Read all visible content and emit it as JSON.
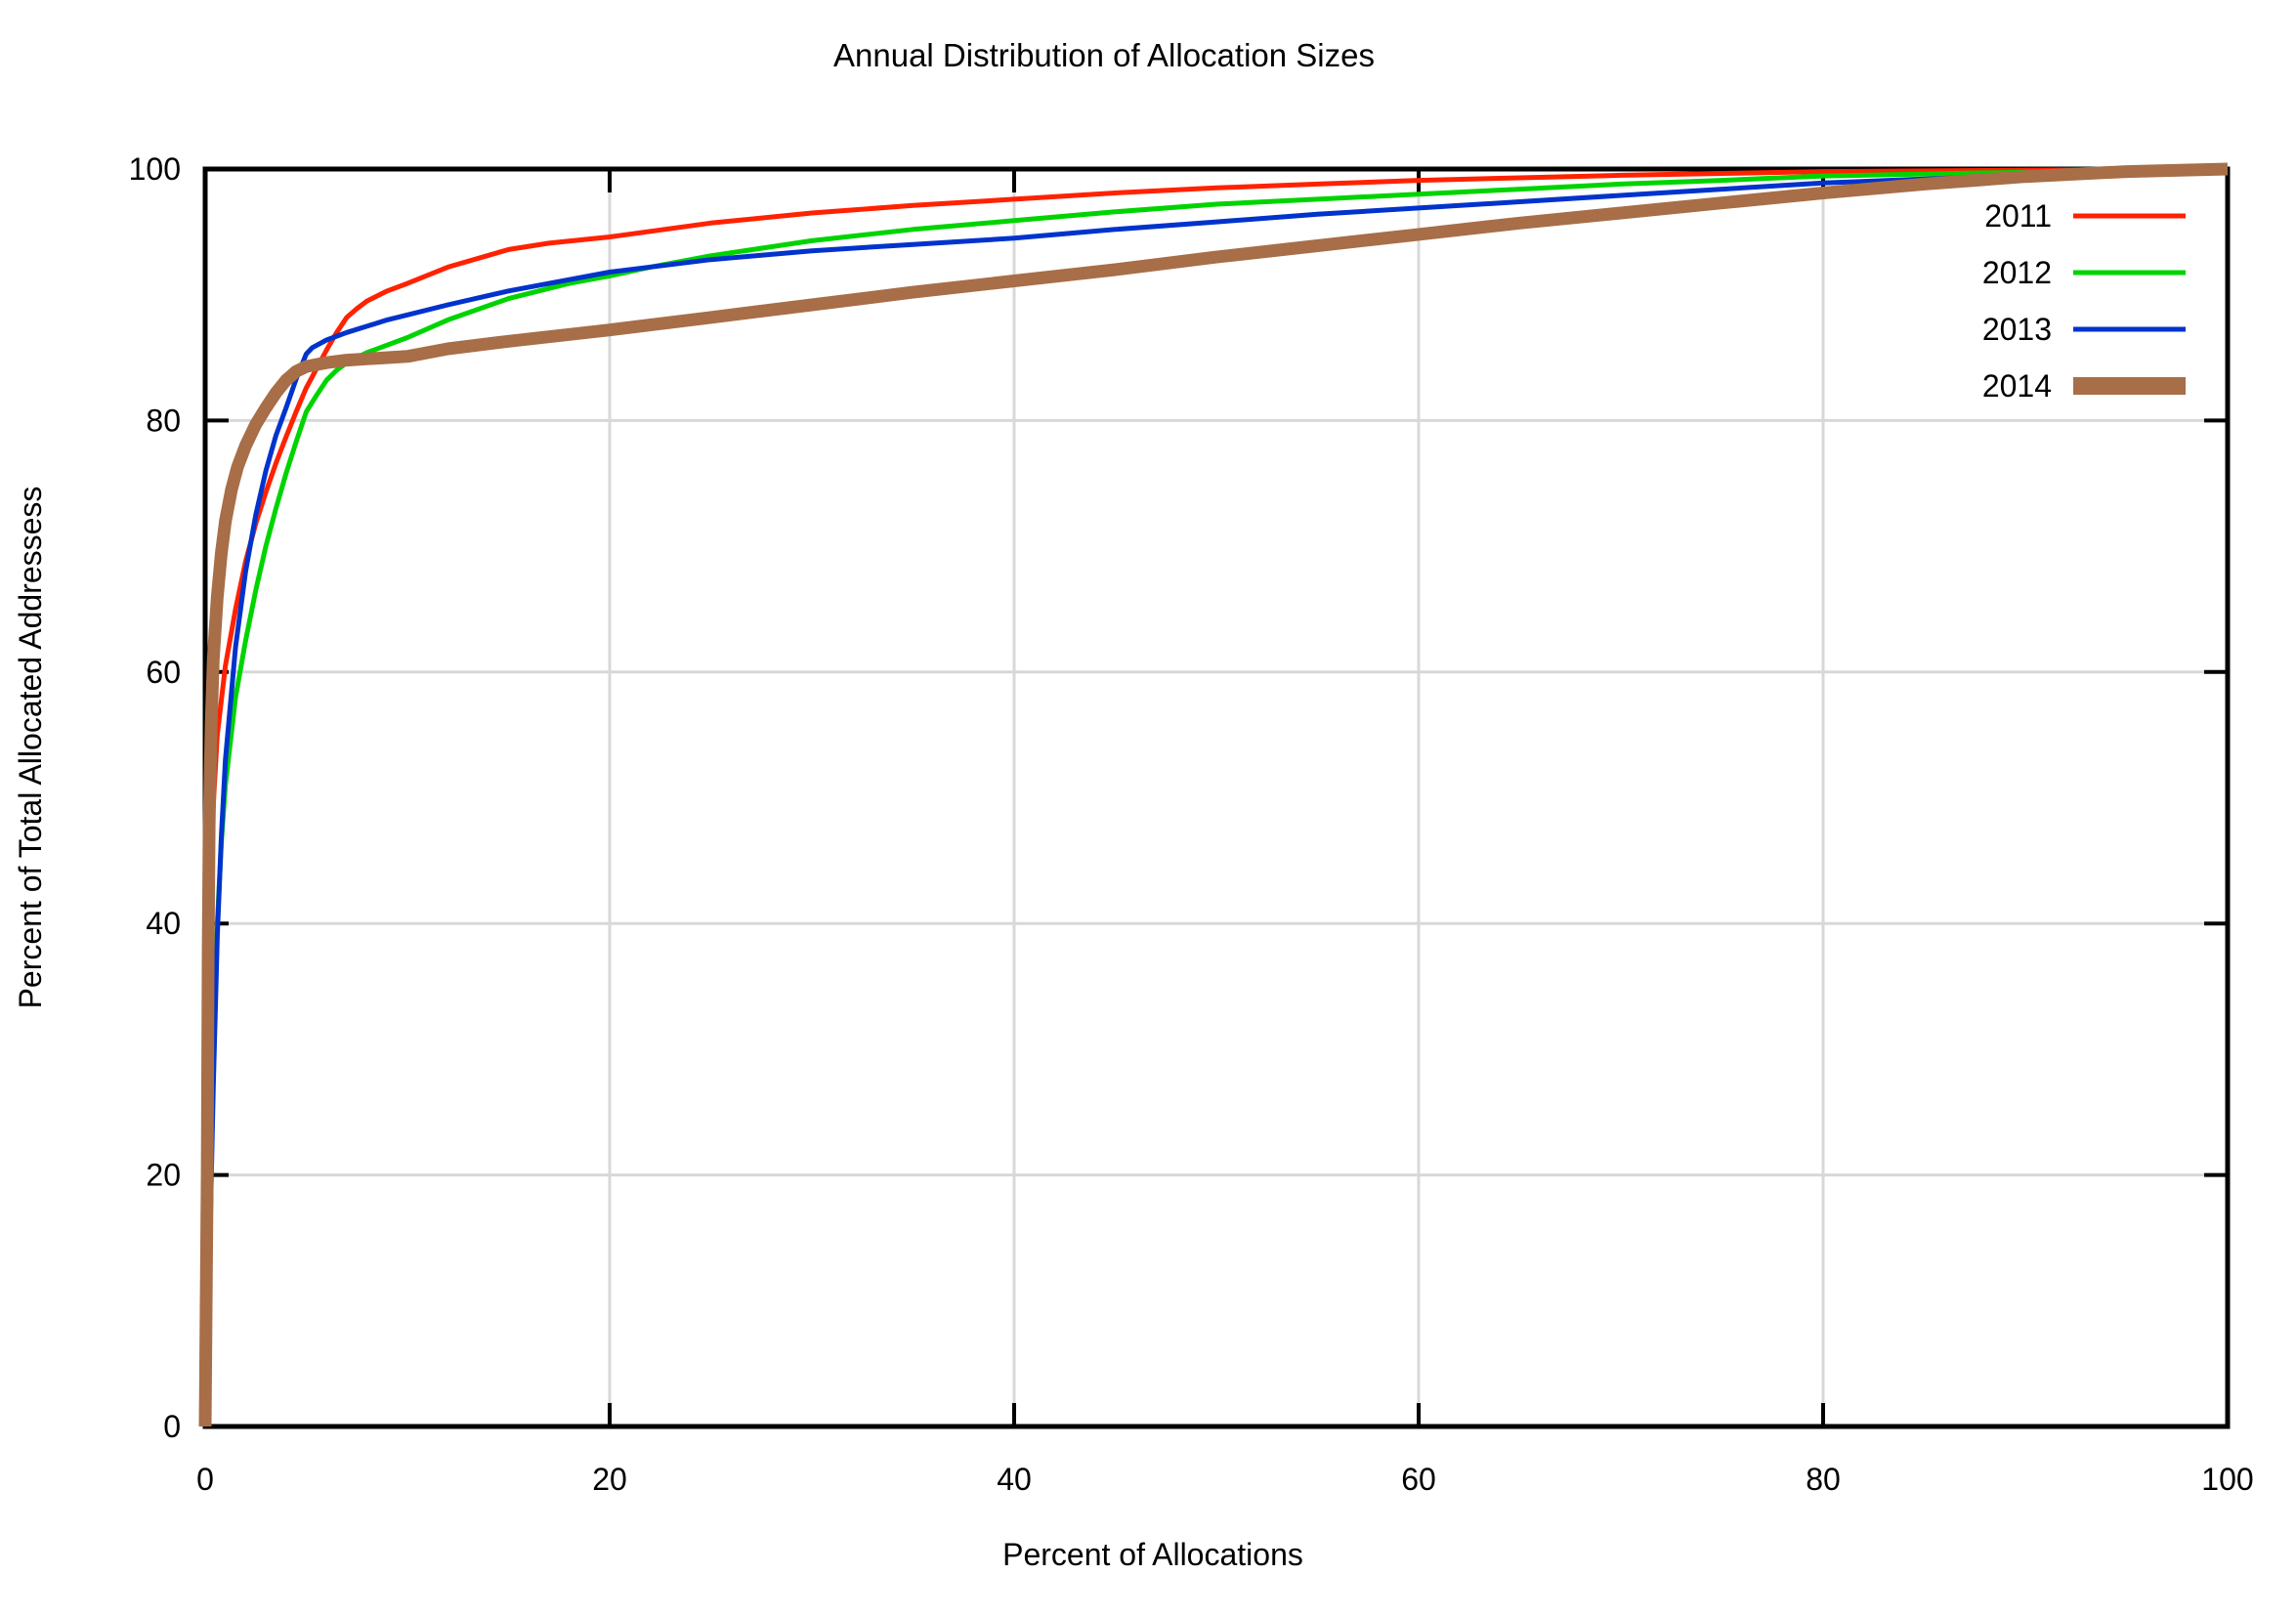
{
  "title": "Annual Distribution of Allocation Sizes",
  "chart_data": {
    "type": "line",
    "title": "Annual Distribution of Allocation Sizes",
    "xlabel": "Percent of Allocations",
    "ylabel": "Percent of Total Allocated Addressess",
    "xlim": [
      0,
      100
    ],
    "ylim": [
      0,
      100
    ],
    "xticks": [
      "0",
      "20",
      "40",
      "60",
      "80",
      "100"
    ],
    "yticks": [
      "0",
      "20",
      "40",
      "60",
      "80",
      "100"
    ],
    "grid": true,
    "grid_color": "#d8d8d8",
    "border_color": "#000000",
    "legend_position": "top-right-inside",
    "series": [
      {
        "name": "2011",
        "color": "#ff2200",
        "width": 5,
        "points": [
          [
            0,
            0
          ],
          [
            0.1,
            20
          ],
          [
            0.2,
            38
          ],
          [
            0.35,
            48
          ],
          [
            0.6,
            55
          ],
          [
            1,
            60.5
          ],
          [
            1.5,
            65
          ],
          [
            2,
            68.8
          ],
          [
            2.5,
            71.8
          ],
          [
            3,
            74.3
          ],
          [
            3.5,
            76.6
          ],
          [
            4,
            78.7
          ],
          [
            4.5,
            80.7
          ],
          [
            5,
            82.6
          ],
          [
            5.5,
            84.1
          ],
          [
            6,
            85.6
          ],
          [
            6.5,
            87
          ],
          [
            7,
            88.2
          ],
          [
            7.5,
            88.9
          ],
          [
            8,
            89.5
          ],
          [
            9,
            90.3
          ],
          [
            10,
            90.9
          ],
          [
            12,
            92.2
          ],
          [
            15,
            93.6
          ],
          [
            17,
            94.1
          ],
          [
            20,
            94.6
          ],
          [
            25,
            95.7
          ],
          [
            30,
            96.5
          ],
          [
            35,
            97.1
          ],
          [
            40,
            97.6
          ],
          [
            45,
            98.1
          ],
          [
            50,
            98.5
          ],
          [
            55,
            98.8
          ],
          [
            60,
            99.1
          ],
          [
            65,
            99.3
          ],
          [
            70,
            99.5
          ],
          [
            75,
            99.65
          ],
          [
            80,
            99.8
          ],
          [
            85,
            99.85
          ],
          [
            90,
            99.9
          ],
          [
            95,
            99.95
          ],
          [
            100,
            100
          ]
        ]
      },
      {
        "name": "2012",
        "color": "#00d400",
        "width": 5,
        "points": [
          [
            0,
            0
          ],
          [
            0.2,
            15
          ],
          [
            0.4,
            30
          ],
          [
            0.6,
            40
          ],
          [
            0.8,
            46.5
          ],
          [
            1,
            51
          ],
          [
            1.5,
            58
          ],
          [
            2,
            62.5
          ],
          [
            2.5,
            66.5
          ],
          [
            3,
            70
          ],
          [
            3.5,
            73
          ],
          [
            4,
            75.8
          ],
          [
            4.5,
            78.3
          ],
          [
            5,
            80.7
          ],
          [
            5.5,
            82
          ],
          [
            6,
            83.2
          ],
          [
            6.5,
            84
          ],
          [
            7,
            84.6
          ],
          [
            8,
            85.4
          ],
          [
            9,
            86
          ],
          [
            10,
            86.6
          ],
          [
            12,
            88
          ],
          [
            15,
            89.7
          ],
          [
            18,
            90.9
          ],
          [
            20,
            91.5
          ],
          [
            22,
            92.2
          ],
          [
            25,
            93.1
          ],
          [
            30,
            94.3
          ],
          [
            35,
            95.2
          ],
          [
            40,
            95.9
          ],
          [
            45,
            96.6
          ],
          [
            50,
            97.2
          ],
          [
            55,
            97.6
          ],
          [
            60,
            98
          ],
          [
            65,
            98.4
          ],
          [
            70,
            98.8
          ],
          [
            75,
            99.1
          ],
          [
            80,
            99.45
          ],
          [
            85,
            99.6
          ],
          [
            90,
            99.75
          ],
          [
            95,
            99.9
          ],
          [
            100,
            100
          ]
        ]
      },
      {
        "name": "2013",
        "color": "#0033cc",
        "width": 5,
        "points": [
          [
            0,
            0
          ],
          [
            0.2,
            12
          ],
          [
            0.4,
            27
          ],
          [
            0.6,
            39
          ],
          [
            0.8,
            47
          ],
          [
            1,
            53
          ],
          [
            1.5,
            62
          ],
          [
            2,
            68
          ],
          [
            2.5,
            72.5
          ],
          [
            3,
            76
          ],
          [
            3.5,
            78.8
          ],
          [
            4,
            81
          ],
          [
            4.5,
            83.3
          ],
          [
            5,
            85.3
          ],
          [
            5.3,
            85.8
          ],
          [
            6,
            86.4
          ],
          [
            7,
            87
          ],
          [
            8,
            87.5
          ],
          [
            9,
            88
          ],
          [
            10,
            88.4
          ],
          [
            12,
            89.2
          ],
          [
            15,
            90.3
          ],
          [
            20,
            91.8
          ],
          [
            25,
            92.8
          ],
          [
            30,
            93.5
          ],
          [
            35,
            94
          ],
          [
            40,
            94.5
          ],
          [
            45,
            95.2
          ],
          [
            50,
            95.8
          ],
          [
            55,
            96.4
          ],
          [
            60,
            96.9
          ],
          [
            65,
            97.4
          ],
          [
            70,
            97.9
          ],
          [
            75,
            98.4
          ],
          [
            80,
            98.9
          ],
          [
            85,
            99.2
          ],
          [
            90,
            99.5
          ],
          [
            95,
            99.8
          ],
          [
            100,
            100
          ]
        ]
      },
      {
        "name": "2014",
        "color": "#a76e48",
        "width": 13,
        "points": [
          [
            0,
            0
          ],
          [
            0.1,
            20
          ],
          [
            0.15,
            38
          ],
          [
            0.2,
            48
          ],
          [
            0.3,
            56
          ],
          [
            0.4,
            61
          ],
          [
            0.6,
            66
          ],
          [
            0.8,
            69.5
          ],
          [
            1,
            72
          ],
          [
            1.3,
            74.5
          ],
          [
            1.6,
            76.3
          ],
          [
            2,
            78
          ],
          [
            2.5,
            79.7
          ],
          [
            3,
            81
          ],
          [
            3.5,
            82.2
          ],
          [
            4,
            83.2
          ],
          [
            4.5,
            83.9
          ],
          [
            5,
            84.3
          ],
          [
            6,
            84.6
          ],
          [
            7,
            84.8
          ],
          [
            8,
            84.9
          ],
          [
            10,
            85.1
          ],
          [
            12,
            85.7
          ],
          [
            15,
            86.3
          ],
          [
            20,
            87.2
          ],
          [
            25,
            88.2
          ],
          [
            30,
            89.2
          ],
          [
            35,
            90.2
          ],
          [
            40,
            91.1
          ],
          [
            45,
            92
          ],
          [
            50,
            93
          ],
          [
            55,
            93.9
          ],
          [
            60,
            94.8
          ],
          [
            65,
            95.7
          ],
          [
            70,
            96.5
          ],
          [
            75,
            97.3
          ],
          [
            80,
            98.1
          ],
          [
            85,
            98.8
          ],
          [
            90,
            99.4
          ],
          [
            95,
            99.8
          ],
          [
            100,
            100
          ]
        ]
      }
    ]
  }
}
